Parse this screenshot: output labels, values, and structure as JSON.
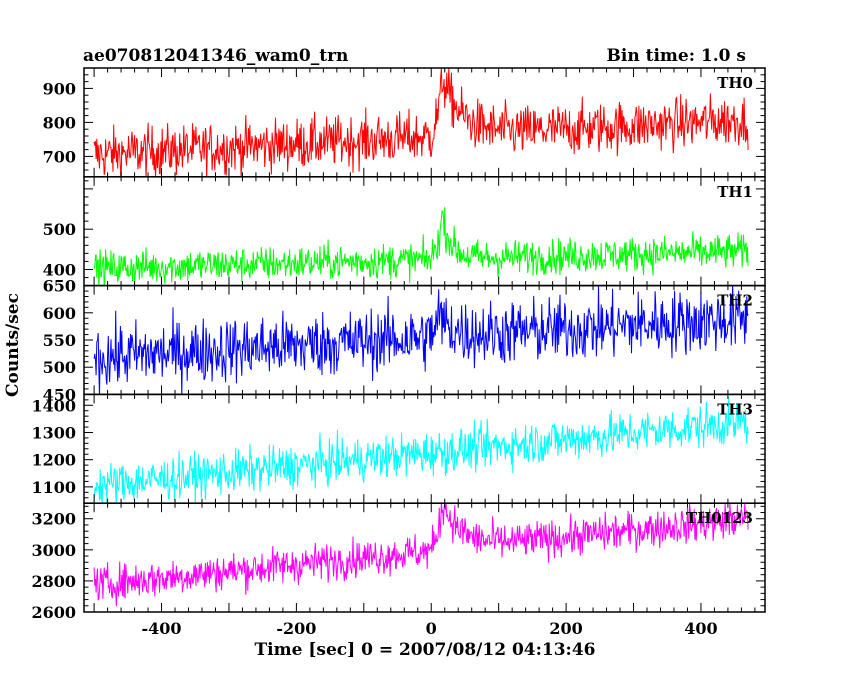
{
  "header": {
    "title": "ae070812041346_wam0_trn",
    "bin_time": "Bin time: 1.0 s"
  },
  "chart_data": {
    "type": "line",
    "xlabel": "Time [sec] 0 = 2007/08/12 04:13:46",
    "ylabel": "Counts/sec",
    "xlim": [
      -515,
      495
    ],
    "x_ticks": [
      -400,
      -200,
      0,
      200,
      400
    ],
    "x_start": -500,
    "x_end": 470,
    "bin": 1.0,
    "grid": false,
    "panels": [
      {
        "name": "TH0",
        "color": "#ff0000",
        "ylim": [
          640,
          960
        ],
        "y_ticks": [
          700,
          800,
          900
        ],
        "baseline_start": 705,
        "baseline_end": 808,
        "noise": 38,
        "burst_peak": 180,
        "burst_time": 15,
        "burst_decay": 28
      },
      {
        "name": "TH1",
        "color": "#00ff00",
        "ylim": [
          360,
          630
        ],
        "y_ticks": [
          400,
          500
        ],
        "baseline_start": 403,
        "baseline_end": 445,
        "noise": 22,
        "burst_peak": 115,
        "burst_time": 15,
        "burst_decay": 14
      },
      {
        "name": "TH2",
        "color": "#0000ff",
        "ylim": [
          450,
          650
        ],
        "y_ticks": [
          450,
          500,
          550,
          600,
          650
        ],
        "baseline_start": 518,
        "baseline_end": 590,
        "noise": 30,
        "burst_peak": 40,
        "burst_time": 10,
        "burst_decay": 20
      },
      {
        "name": "TH3",
        "color": "#00ffff",
        "ylim": [
          1040,
          1440
        ],
        "y_ticks": [
          1100,
          1200,
          1300,
          1400
        ],
        "baseline_start": 1105,
        "baseline_end": 1340,
        "noise": 40,
        "burst_peak": 0,
        "burst_time": 15,
        "burst_decay": 20
      },
      {
        "name": "TH0123",
        "color": "#ff00ff",
        "ylim": [
          2600,
          3300
        ],
        "y_ticks": [
          2600,
          2800,
          3000,
          3200
        ],
        "baseline_start": 2775,
        "baseline_end": 3200,
        "noise": 60,
        "burst_peak": 320,
        "burst_time": 15,
        "burst_decay": 28
      }
    ]
  }
}
